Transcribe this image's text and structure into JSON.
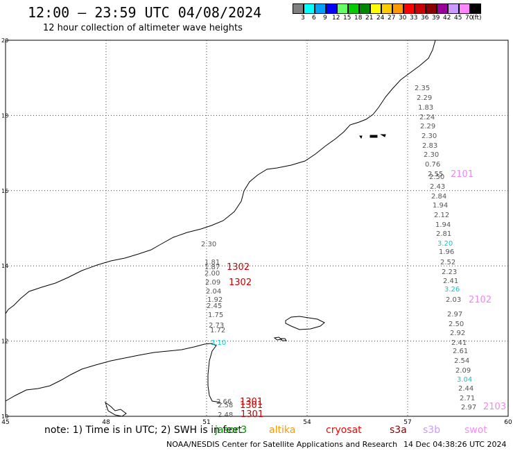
{
  "header": {
    "title": "12:00 — 23:59 UTC 04/08/2024",
    "subtitle": "12 hour collection of altimeter wave heights"
  },
  "legend": {
    "swatches": [
      {
        "color": "#7f7f7f",
        "label": "3"
      },
      {
        "color": "#00ffff",
        "label": "6"
      },
      {
        "color": "#00a0ff",
        "label": "9"
      },
      {
        "color": "#0000ff",
        "label": "12"
      },
      {
        "color": "#66ff66",
        "label": "15"
      },
      {
        "color": "#00cc00",
        "label": "18"
      },
      {
        "color": "#008800",
        "label": "21"
      },
      {
        "color": "#ffff00",
        "label": "24"
      },
      {
        "color": "#ffcc00",
        "label": "27"
      },
      {
        "color": "#ff9900",
        "label": "30"
      },
      {
        "color": "#ff0000",
        "label": "33"
      },
      {
        "color": "#cc0000",
        "label": "36"
      },
      {
        "color": "#880000",
        "label": "39"
      },
      {
        "color": "#990099",
        "label": "42"
      },
      {
        "color": "#cc99ff",
        "label": "45"
      },
      {
        "color": "#ff88ff",
        "label": "70"
      },
      {
        "color": "#000000",
        "label": ""
      }
    ],
    "unit": "(ft)"
  },
  "map": {
    "lon_ticks": [
      "45",
      "48",
      "51",
      "54",
      "57",
      "60"
    ],
    "lat_ticks": [
      "20",
      "18",
      "16",
      "14",
      "12",
      "10"
    ],
    "lon_range": [
      45,
      60
    ],
    "lat_range": [
      10,
      20
    ]
  },
  "passes": [
    {
      "id": "1302",
      "color": "#cc0000"
    },
    {
      "id": "1302",
      "color": "#cc0000"
    },
    {
      "id": "1301",
      "color": "#cc0000"
    },
    {
      "id": "1301",
      "color": "#cc0000"
    },
    {
      "id": "1301",
      "color": "#cc0000"
    },
    {
      "id": "2101",
      "color": "#ee88ee"
    },
    {
      "id": "2102",
      "color": "#ee88ee"
    },
    {
      "id": "2103",
      "color": "#ee88ee"
    }
  ],
  "track_west": {
    "values": [
      {
        "v": "2.30",
        "color": "#555555"
      },
      {
        "v": "1.81",
        "color": "#555555"
      },
      {
        "v": "1.87",
        "color": "#555555"
      },
      {
        "v": "2.00",
        "color": "#555555"
      },
      {
        "v": "2.09",
        "color": "#555555"
      },
      {
        "v": "2.04",
        "color": "#555555"
      },
      {
        "v": "1.92",
        "color": "#555555"
      },
      {
        "v": "2.45",
        "color": "#555555"
      },
      {
        "v": "1.75",
        "color": "#555555"
      },
      {
        "v": "2.73",
        "color": "#555555"
      },
      {
        "v": "1.72",
        "color": "#555555"
      },
      {
        "v": "3.10",
        "color": "#00cccc"
      },
      {
        "v": "2.66",
        "color": "#555555"
      },
      {
        "v": "2.58",
        "color": "#555555"
      },
      {
        "v": "2.48",
        "color": "#555555"
      }
    ]
  },
  "track_east": {
    "values": [
      {
        "v": "2.35",
        "color": "#555555"
      },
      {
        "v": "2.29",
        "color": "#555555"
      },
      {
        "v": "1.83",
        "color": "#555555"
      },
      {
        "v": "2.24",
        "color": "#555555"
      },
      {
        "v": "2.29",
        "color": "#555555"
      },
      {
        "v": "2.30",
        "color": "#555555"
      },
      {
        "v": "2.83",
        "color": "#555555"
      },
      {
        "v": "2.30",
        "color": "#555555"
      },
      {
        "v": "0.76",
        "color": "#555555"
      },
      {
        "v": "2.55",
        "color": "#555555"
      },
      {
        "v": "2.50",
        "color": "#555555"
      },
      {
        "v": "2.43",
        "color": "#555555"
      },
      {
        "v": "2.84",
        "color": "#555555"
      },
      {
        "v": "1.94",
        "color": "#555555"
      },
      {
        "v": "2.12",
        "color": "#555555"
      },
      {
        "v": "1.94",
        "color": "#555555"
      },
      {
        "v": "2.81",
        "color": "#555555"
      },
      {
        "v": "3.20",
        "color": "#00cccc"
      },
      {
        "v": "1.96",
        "color": "#555555"
      },
      {
        "v": "2.52",
        "color": "#555555"
      },
      {
        "v": "2.23",
        "color": "#555555"
      },
      {
        "v": "2.41",
        "color": "#555555"
      },
      {
        "v": "3.26",
        "color": "#00cccc"
      },
      {
        "v": "2.03",
        "color": "#555555"
      },
      {
        "v": "2.97",
        "color": "#555555"
      },
      {
        "v": "2.50",
        "color": "#555555"
      },
      {
        "v": "2.92",
        "color": "#555555"
      },
      {
        "v": "2.41",
        "color": "#555555"
      },
      {
        "v": "2.61",
        "color": "#555555"
      },
      {
        "v": "2.54",
        "color": "#555555"
      },
      {
        "v": "2.09",
        "color": "#555555"
      },
      {
        "v": "3.04",
        "color": "#00cccc"
      },
      {
        "v": "2.44",
        "color": "#555555"
      },
      {
        "v": "2.71",
        "color": "#555555"
      },
      {
        "v": "2.97",
        "color": "#555555"
      }
    ]
  },
  "footer": {
    "note": "note: 1) Time is in UTC; 2) SWH is in feet",
    "satellites": [
      {
        "name": "jason3",
        "color": "#008800"
      },
      {
        "name": "altika",
        "color": "#ff9900"
      },
      {
        "name": "cryosat",
        "color": "#ff0000"
      },
      {
        "name": "s3a",
        "color": "#880000"
      },
      {
        "name": "s3b",
        "color": "#cc99ff"
      },
      {
        "name": "swot",
        "color": "#ff88ff"
      }
    ],
    "credit": "NOAA/NESDIS Center for Satellite Applications and Research",
    "timestamp": "14 Dec 04:38:26 UTC 2024"
  }
}
